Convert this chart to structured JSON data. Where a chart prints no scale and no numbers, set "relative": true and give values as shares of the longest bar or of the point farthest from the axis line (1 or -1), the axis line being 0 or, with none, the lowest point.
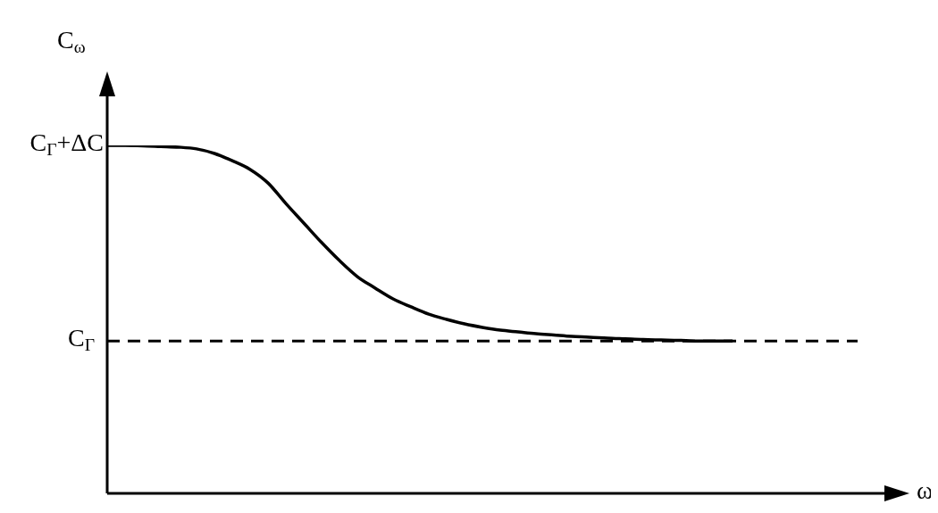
{
  "chart_data": {
    "type": "line",
    "relative": true,
    "xlabel": "ω",
    "ylabel": "C$_{ω}$",
    "categories": [
      null,
      null,
      null,
      null,
      null,
      null,
      null,
      null,
      null,
      null,
      null,
      null,
      null,
      null,
      null,
      null,
      null,
      null,
      null,
      null,
      null,
      null,
      null,
      null,
      null,
      null,
      null,
      null,
      null,
      null,
      null,
      null,
      null,
      null,
      null,
      null,
      null,
      null,
      null,
      null,
      null,
      null,
      null
    ],
    "series": [
      {
        "color": "#000000",
        "values": [
          1.0,
          1.0,
          0.999,
          0.997,
          0.995,
          0.99,
          0.977,
          0.956,
          0.931,
          0.892,
          0.833,
          0.777,
          0.721,
          0.669,
          0.623,
          0.59,
          0.559,
          0.536,
          0.515,
          0.5,
          0.487,
          0.477,
          0.469,
          0.464,
          0.459,
          0.455,
          0.451,
          0.449,
          0.446,
          0.444,
          0.442,
          0.441,
          0.44,
          0.438,
          0.438,
          0.438,
          null,
          null,
          null,
          null,
          null,
          null,
          null
        ]
      }
    ],
    "ref_lines": [
      {
        "axis": "y",
        "value": 0.438,
        "label": "C$_{Γ}$",
        "color": "#000000",
        "line_style": "dashed"
      }
    ],
    "annotations": [
      "C$_{Γ}$+ΔC"
    ],
    "line_style": "solid",
    "marker": "none",
    "grid": false,
    "legend": false
  }
}
